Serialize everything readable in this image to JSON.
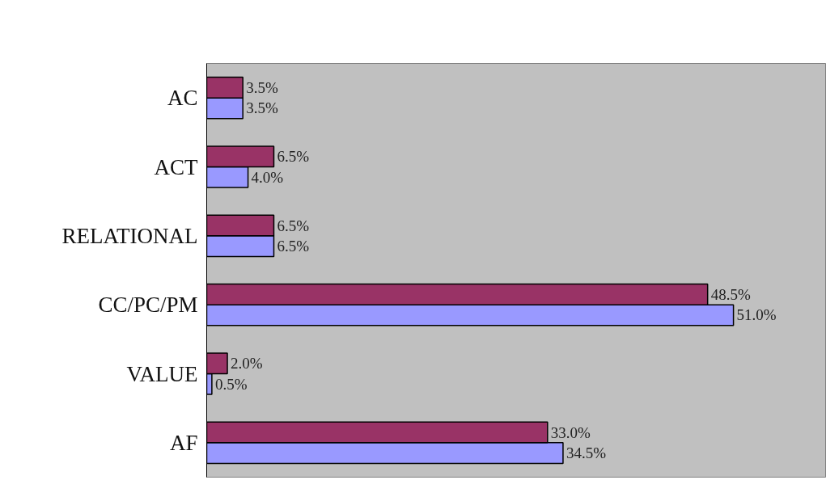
{
  "chart_data": {
    "type": "bar",
    "orientation": "horizontal",
    "categories": [
      "AC",
      "ACT",
      "RELATIONAL",
      "CC/PC/PM",
      "VALUE",
      "AF"
    ],
    "xlim": [
      0,
      60
    ],
    "series": [
      {
        "color": "#9999ff",
        "values": [
          3.5,
          4.0,
          6.5,
          51.0,
          0.5,
          34.5
        ],
        "value_labels": [
          "3.5%",
          "4.0%",
          "6.5%",
          "51.0%",
          "0.5%",
          "34.5%"
        ]
      },
      {
        "color": "#993366",
        "values": [
          3.5,
          6.5,
          6.5,
          48.5,
          2.0,
          33.0
        ],
        "value_labels": [
          "3.5%",
          "6.5%",
          "6.5%",
          "48.5%",
          "2.0%",
          "33.0%"
        ]
      }
    ],
    "tick_labels": "y",
    "grid": false
  }
}
